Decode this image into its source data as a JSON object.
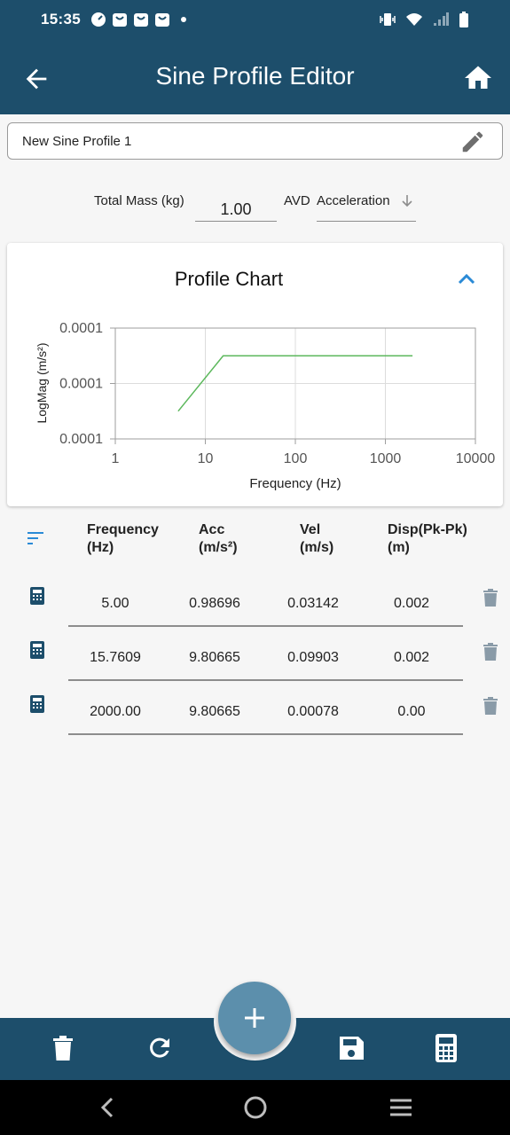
{
  "status_bar": {
    "time": "15:35"
  },
  "app_bar": {
    "title": "Sine Profile Editor"
  },
  "profile_name": {
    "value": "New Sine Profile 1"
  },
  "settings": {
    "mass_label": "Total Mass (kg)",
    "mass_value": "1.00",
    "avd_label": "AVD",
    "avd_selected": "Acceleration"
  },
  "chart_card": {
    "title": "Profile Chart"
  },
  "chart_data": {
    "type": "line",
    "xlabel": "Frequency (Hz)",
    "ylabel": "LogMag (m/s²)",
    "x_scale": "log",
    "xlim": [
      1,
      10000
    ],
    "x_ticks": [
      "1",
      "10",
      "100",
      "1000",
      "10000"
    ],
    "y_ticks": [
      "0.0001",
      "0.0001",
      "0.0001"
    ],
    "grid": true,
    "series": [
      {
        "x": [
          5,
          15.7609,
          2000
        ],
        "y": [
          0.98696,
          9.80665,
          9.80665
        ],
        "color": "#5cb85c"
      }
    ]
  },
  "table": {
    "headers": [
      {
        "line1": "Frequency",
        "line2": "(Hz)"
      },
      {
        "line1": "Acc",
        "line2": "(m/s²)"
      },
      {
        "line1": "Vel",
        "line2": "(m/s)"
      },
      {
        "line1": "Disp(Pk-Pk)",
        "line2": "(m)"
      }
    ],
    "rows": [
      {
        "frequency": "5.00",
        "acc": "0.98696",
        "vel": "0.03142",
        "disp": "0.002"
      },
      {
        "frequency": "15.7609",
        "acc": "9.80665",
        "vel": "0.09903",
        "disp": "0.002"
      },
      {
        "frequency": "2000.00",
        "acc": "9.80665",
        "vel": "0.00078",
        "disp": "0.00"
      }
    ]
  },
  "colors": {
    "primary": "#1d4e6b",
    "fab": "#5c8fac",
    "series": "#5cb85c",
    "accent_icon": "#2a8ad6"
  },
  "icons": [
    "arrow-back-icon",
    "home-icon",
    "pencil-icon",
    "arrow-down-icon",
    "chevron-up-icon",
    "sort-icon",
    "calculator-icon",
    "trash-icon",
    "plus-icon",
    "refresh-icon",
    "save-icon"
  ]
}
